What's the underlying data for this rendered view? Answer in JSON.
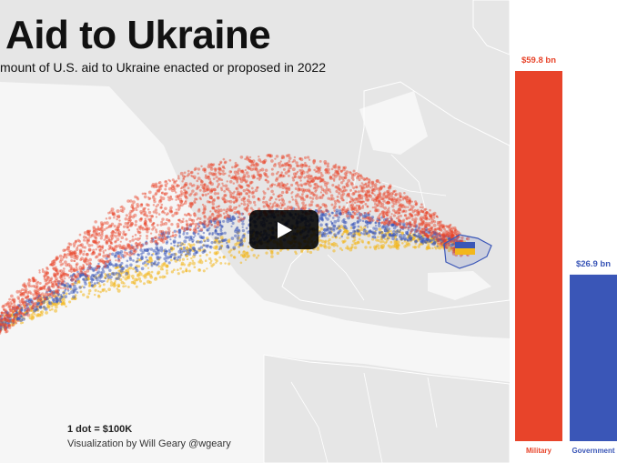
{
  "header": {
    "title": "Aid to Ukraine",
    "subtitle": "mount of U.S. aid to Ukraine enacted or proposed in 2022"
  },
  "footer": {
    "dot_note": "1 dot = $100K",
    "credit": "Visualization by Will Geary @wgeary"
  },
  "video": {
    "play_icon": "play-icon"
  },
  "colors": {
    "military": "#e8442a",
    "government": "#3a56b7",
    "yellow": "#f2b71c",
    "map_land": "#e6e6e6",
    "map_sea": "#f6f6f6"
  },
  "chart_data": {
    "type": "bar",
    "categories": [
      "Military",
      "Government"
    ],
    "series": [
      {
        "name": "",
        "values": [
          59.8,
          26.9
        ],
        "labels": [
          "$59.8 bn",
          "$26.9 bn"
        ],
        "colors": [
          "#e8442a",
          "#3a56b7"
        ]
      }
    ],
    "ylim": [
      0,
      59.8
    ],
    "note": "1 dot = $100K"
  }
}
